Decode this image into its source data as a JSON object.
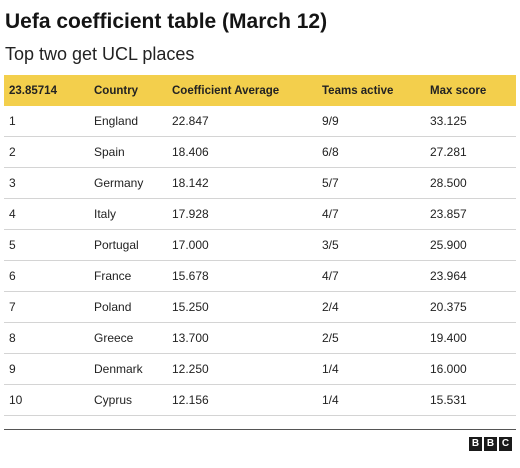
{
  "title": "Uefa coefficient table (March 12)",
  "subtitle": "Top two get UCL places",
  "logo_letters": [
    "B",
    "B",
    "C"
  ],
  "colors": {
    "header_bg": "#f3cf4c",
    "row_divider": "#d4d4d4",
    "bottom_rule": "#555555"
  },
  "chart_data": {
    "type": "table",
    "title": "Uefa coefficient table (March 12)",
    "subtitle": "Top two get UCL places",
    "columns": [
      "23.85714",
      "Country",
      "Coefficient Average",
      "Teams active",
      "Max score"
    ],
    "rows": [
      [
        "1",
        "England",
        "22.847",
        "9/9",
        "33.125"
      ],
      [
        "2",
        "Spain",
        "18.406",
        "6/8",
        "27.281"
      ],
      [
        "3",
        "Germany",
        "18.142",
        "5/7",
        "28.500"
      ],
      [
        "4",
        "Italy",
        "17.928",
        "4/7",
        "23.857"
      ],
      [
        "5",
        "Portugal",
        "17.000",
        "3/5",
        "25.900"
      ],
      [
        "6",
        "France",
        "15.678",
        "4/7",
        "23.964"
      ],
      [
        "7",
        "Poland",
        "15.250",
        "2/4",
        "20.375"
      ],
      [
        "8",
        "Greece",
        "13.700",
        "2/5",
        "19.400"
      ],
      [
        "9",
        "Denmark",
        "12.250",
        "1/4",
        "16.000"
      ],
      [
        "10",
        "Cyprus",
        "12.156",
        "1/4",
        "15.531"
      ]
    ]
  }
}
